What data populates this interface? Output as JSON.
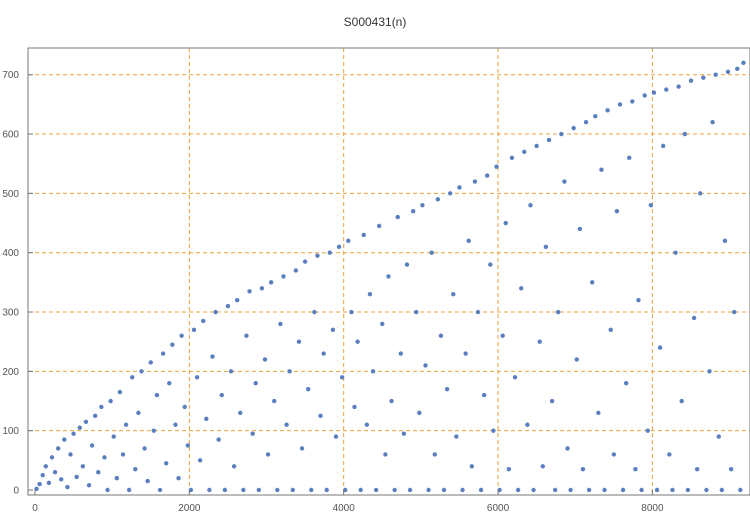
{
  "chart_data": {
    "type": "scatter",
    "title": "S000431(n)",
    "xlabel": "",
    "ylabel": "",
    "xlim": [
      0,
      9200
    ],
    "ylim": [
      0,
      740
    ],
    "x_ticks": [
      0,
      2000,
      4000,
      6000,
      8000
    ],
    "y_ticks": [
      0,
      100,
      200,
      300,
      400,
      500,
      600,
      700
    ],
    "grid": true,
    "grid_color": "#e8a33b",
    "point_color": "#5a7fbf",
    "legend": "none",
    "series": [
      {
        "points": [
          [
            20,
            2
          ],
          [
            60,
            10
          ],
          [
            100,
            25
          ],
          [
            140,
            40
          ],
          [
            180,
            12
          ],
          [
            220,
            55
          ],
          [
            260,
            30
          ],
          [
            300,
            70
          ],
          [
            340,
            18
          ],
          [
            380,
            85
          ],
          [
            420,
            5
          ],
          [
            460,
            60
          ],
          [
            500,
            95
          ],
          [
            540,
            22
          ],
          [
            580,
            105
          ],
          [
            620,
            40
          ],
          [
            660,
            115
          ],
          [
            700,
            8
          ],
          [
            740,
            75
          ],
          [
            780,
            125
          ],
          [
            820,
            30
          ],
          [
            860,
            140
          ],
          [
            900,
            55
          ],
          [
            940,
            0
          ],
          [
            980,
            150
          ],
          [
            1020,
            90
          ],
          [
            1060,
            20
          ],
          [
            1100,
            165
          ],
          [
            1140,
            60
          ],
          [
            1180,
            110
          ],
          [
            1220,
            0
          ],
          [
            1260,
            190
          ],
          [
            1300,
            35
          ],
          [
            1340,
            130
          ],
          [
            1380,
            200
          ],
          [
            1420,
            70
          ],
          [
            1460,
            15
          ],
          [
            1500,
            215
          ],
          [
            1540,
            100
          ],
          [
            1580,
            160
          ],
          [
            1620,
            0
          ],
          [
            1660,
            230
          ],
          [
            1700,
            45
          ],
          [
            1740,
            180
          ],
          [
            1780,
            245
          ],
          [
            1820,
            110
          ],
          [
            1860,
            20
          ],
          [
            1900,
            260
          ],
          [
            1940,
            140
          ],
          [
            1980,
            75
          ],
          [
            2020,
            0
          ],
          [
            2060,
            270
          ],
          [
            2100,
            190
          ],
          [
            2140,
            50
          ],
          [
            2180,
            285
          ],
          [
            2220,
            120
          ],
          [
            2260,
            0
          ],
          [
            2300,
            225
          ],
          [
            2340,
            300
          ],
          [
            2380,
            85
          ],
          [
            2420,
            160
          ],
          [
            2460,
            0
          ],
          [
            2500,
            310
          ],
          [
            2540,
            200
          ],
          [
            2580,
            40
          ],
          [
            2620,
            320
          ],
          [
            2660,
            130
          ],
          [
            2700,
            0
          ],
          [
            2740,
            260
          ],
          [
            2780,
            335
          ],
          [
            2820,
            95
          ],
          [
            2860,
            180
          ],
          [
            2900,
            0
          ],
          [
            2940,
            340
          ],
          [
            2980,
            220
          ],
          [
            3020,
            60
          ],
          [
            3060,
            350
          ],
          [
            3100,
            150
          ],
          [
            3140,
            0
          ],
          [
            3180,
            280
          ],
          [
            3220,
            360
          ],
          [
            3260,
            110
          ],
          [
            3300,
            200
          ],
          [
            3340,
            0
          ],
          [
            3380,
            370
          ],
          [
            3420,
            250
          ],
          [
            3460,
            70
          ],
          [
            3500,
            385
          ],
          [
            3540,
            170
          ],
          [
            3580,
            0
          ],
          [
            3620,
            300
          ],
          [
            3660,
            395
          ],
          [
            3700,
            125
          ],
          [
            3740,
            230
          ],
          [
            3780,
            0
          ],
          [
            3820,
            400
          ],
          [
            3860,
            270
          ],
          [
            3900,
            90
          ],
          [
            3940,
            410
          ],
          [
            3980,
            190
          ],
          [
            4020,
            0
          ],
          [
            4060,
            420
          ],
          [
            4100,
            300
          ],
          [
            4140,
            140
          ],
          [
            4180,
            250
          ],
          [
            4220,
            0
          ],
          [
            4260,
            430
          ],
          [
            4300,
            110
          ],
          [
            4340,
            330
          ],
          [
            4380,
            200
          ],
          [
            4420,
            0
          ],
          [
            4460,
            445
          ],
          [
            4500,
            280
          ],
          [
            4540,
            60
          ],
          [
            4580,
            360
          ],
          [
            4620,
            150
          ],
          [
            4660,
            0
          ],
          [
            4700,
            460
          ],
          [
            4740,
            230
          ],
          [
            4780,
            95
          ],
          [
            4820,
            380
          ],
          [
            4860,
            0
          ],
          [
            4900,
            470
          ],
          [
            4940,
            300
          ],
          [
            4980,
            130
          ],
          [
            5020,
            480
          ],
          [
            5060,
            210
          ],
          [
            5100,
            0
          ],
          [
            5140,
            400
          ],
          [
            5180,
            60
          ],
          [
            5220,
            490
          ],
          [
            5260,
            260
          ],
          [
            5300,
            0
          ],
          [
            5340,
            170
          ],
          [
            5380,
            500
          ],
          [
            5420,
            330
          ],
          [
            5460,
            90
          ],
          [
            5500,
            510
          ],
          [
            5540,
            0
          ],
          [
            5580,
            230
          ],
          [
            5620,
            420
          ],
          [
            5660,
            40
          ],
          [
            5700,
            520
          ],
          [
            5740,
            300
          ],
          [
            5780,
            0
          ],
          [
            5820,
            160
          ],
          [
            5860,
            530
          ],
          [
            5900,
            380
          ],
          [
            5940,
            100
          ],
          [
            5980,
            545
          ],
          [
            6020,
            0
          ],
          [
            6060,
            260
          ],
          [
            6100,
            450
          ],
          [
            6140,
            35
          ],
          [
            6180,
            560
          ],
          [
            6220,
            190
          ],
          [
            6260,
            0
          ],
          [
            6300,
            340
          ],
          [
            6340,
            570
          ],
          [
            6380,
            110
          ],
          [
            6420,
            480
          ],
          [
            6460,
            0
          ],
          [
            6500,
            580
          ],
          [
            6540,
            250
          ],
          [
            6580,
            40
          ],
          [
            6620,
            410
          ],
          [
            6660,
            590
          ],
          [
            6700,
            150
          ],
          [
            6740,
            0
          ],
          [
            6780,
            300
          ],
          [
            6820,
            600
          ],
          [
            6860,
            520
          ],
          [
            6900,
            70
          ],
          [
            6940,
            0
          ],
          [
            6980,
            610
          ],
          [
            7020,
            220
          ],
          [
            7060,
            440
          ],
          [
            7100,
            35
          ],
          [
            7140,
            620
          ],
          [
            7180,
            0
          ],
          [
            7220,
            350
          ],
          [
            7260,
            630
          ],
          [
            7300,
            130
          ],
          [
            7340,
            540
          ],
          [
            7380,
            0
          ],
          [
            7420,
            640
          ],
          [
            7460,
            270
          ],
          [
            7500,
            60
          ],
          [
            7540,
            470
          ],
          [
            7580,
            650
          ],
          [
            7620,
            0
          ],
          [
            7660,
            180
          ],
          [
            7700,
            560
          ],
          [
            7740,
            655
          ],
          [
            7780,
            35
          ],
          [
            7820,
            320
          ],
          [
            7860,
            0
          ],
          [
            7900,
            665
          ],
          [
            7940,
            100
          ],
          [
            7980,
            480
          ],
          [
            8020,
            670
          ],
          [
            8060,
            0
          ],
          [
            8100,
            240
          ],
          [
            8140,
            580
          ],
          [
            8180,
            675
          ],
          [
            8220,
            60
          ],
          [
            8260,
            0
          ],
          [
            8300,
            400
          ],
          [
            8340,
            680
          ],
          [
            8380,
            150
          ],
          [
            8420,
            600
          ],
          [
            8460,
            0
          ],
          [
            8500,
            690
          ],
          [
            8540,
            290
          ],
          [
            8580,
            35
          ],
          [
            8620,
            500
          ],
          [
            8660,
            695
          ],
          [
            8700,
            0
          ],
          [
            8740,
            200
          ],
          [
            8780,
            620
          ],
          [
            8820,
            700
          ],
          [
            8860,
            90
          ],
          [
            8900,
            0
          ],
          [
            8940,
            420
          ],
          [
            8980,
            705
          ],
          [
            9020,
            35
          ],
          [
            9060,
            300
          ],
          [
            9100,
            710
          ],
          [
            9140,
            0
          ],
          [
            9180,
            720
          ]
        ]
      }
    ]
  }
}
